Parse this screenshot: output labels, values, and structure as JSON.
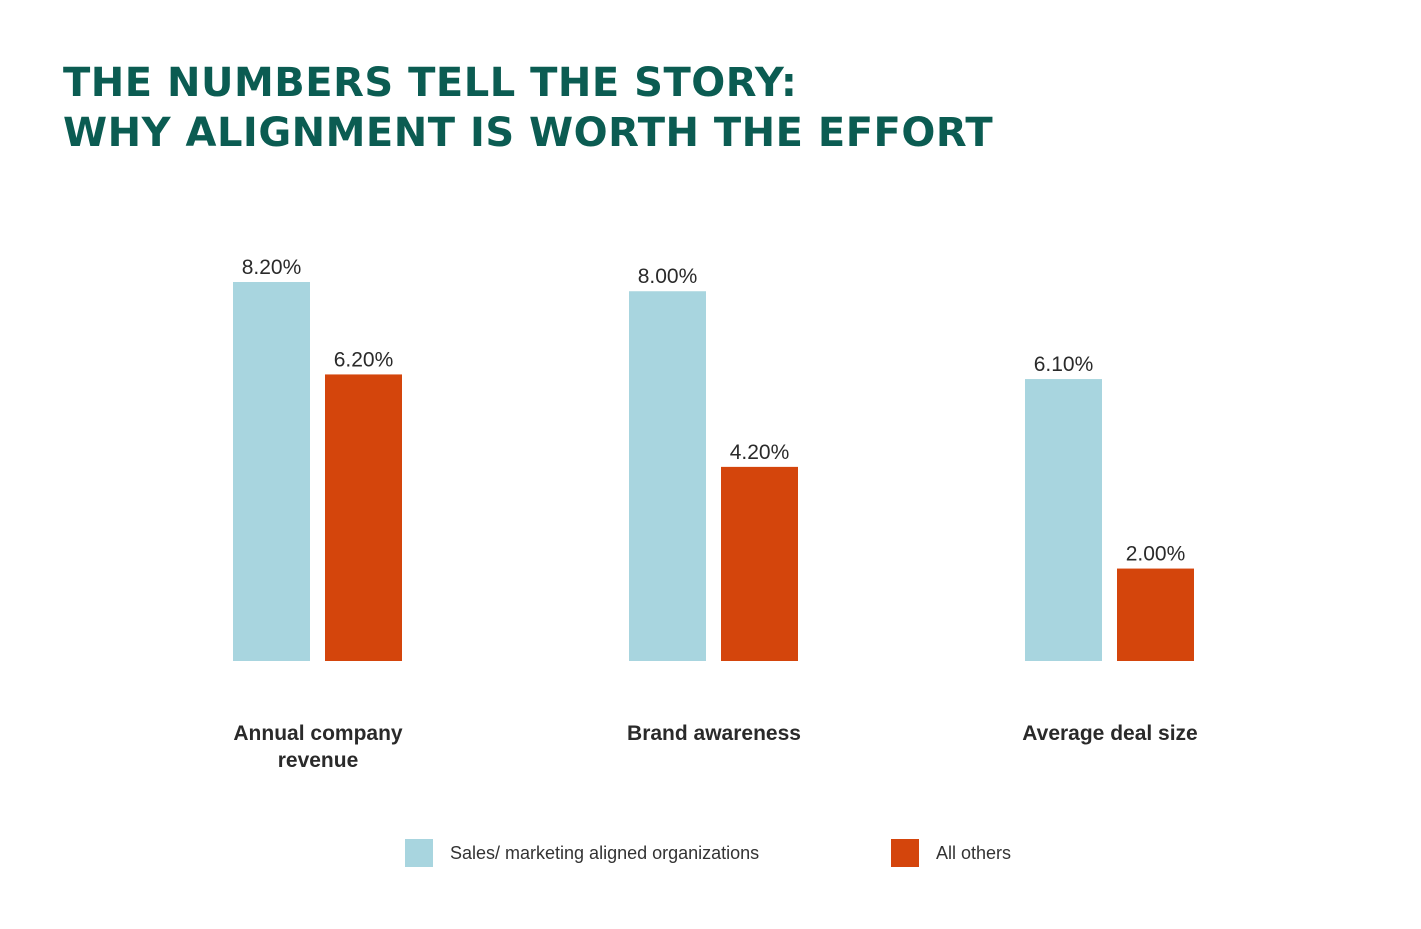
{
  "title_lines": [
    "THE NUMBERS TELL THE STORY:",
    "WHY ALIGNMENT IS WORTH THE EFFORT"
  ],
  "chart_data": {
    "type": "bar",
    "title": "THE NUMBERS TELL THE STORY: WHY ALIGNMENT IS WORTH THE EFFORT",
    "categories": [
      "Annual company revenue",
      "Brand awareness",
      "Average deal size"
    ],
    "series": [
      {
        "name": "Sales/ marketing aligned organizations",
        "values": [
          8.2,
          8.0,
          6.1
        ],
        "labels": [
          "8.20%",
          "8.00%",
          "6.10%"
        ],
        "color": "#a8d5df"
      },
      {
        "name": "All others",
        "values": [
          6.2,
          4.2,
          2.0
        ],
        "labels": [
          "6.20%",
          "4.20%",
          "2.00%"
        ],
        "color": "#d4450c"
      }
    ],
    "xlabel": "",
    "ylabel": "",
    "ylim": [
      0,
      8.2
    ],
    "grid": false,
    "legend": "bottom"
  },
  "category_label_lines": [
    [
      "Annual company",
      "revenue"
    ],
    [
      "Brand awareness"
    ],
    [
      "Average deal size"
    ]
  ],
  "colors": {
    "title": "#0b5c52"
  }
}
